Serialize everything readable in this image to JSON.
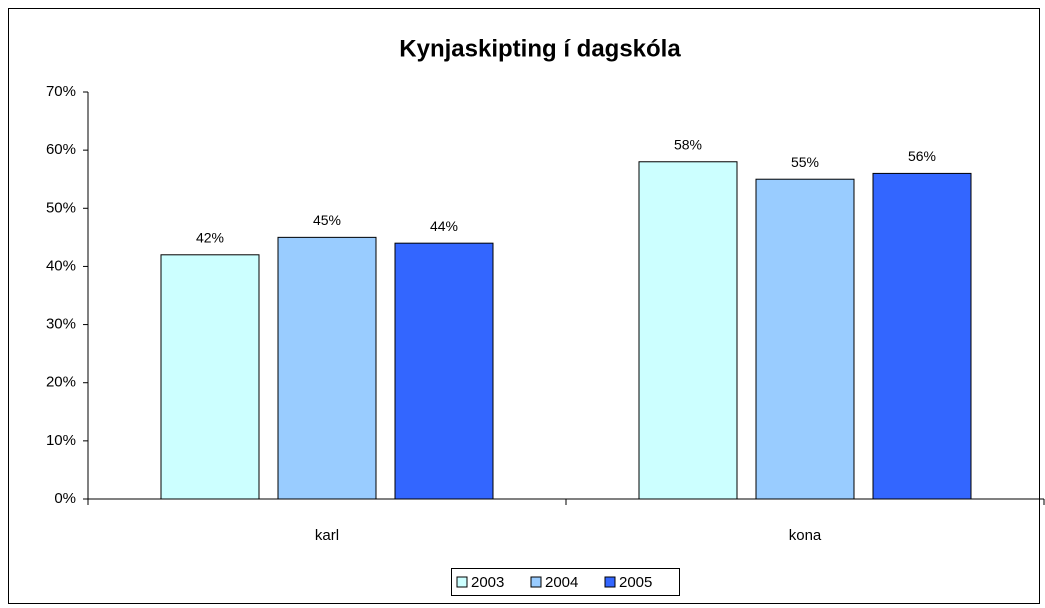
{
  "chart_data": {
    "type": "bar",
    "title": "Kynjaskipting í dagskóla",
    "categories": [
      "karl",
      "kona"
    ],
    "series": [
      {
        "name": "2003",
        "color": "#ccffff",
        "values": [
          42,
          58
        ],
        "value_labels": [
          "42%",
          "58%"
        ]
      },
      {
        "name": "2004",
        "color": "#99ccff",
        "values": [
          45,
          55
        ],
        "value_labels": [
          "45%",
          "55%"
        ]
      },
      {
        "name": "2005",
        "color": "#3366ff",
        "values": [
          44,
          56
        ],
        "value_labels": [
          "44%",
          "56%"
        ]
      }
    ],
    "ylim": [
      0,
      70
    ],
    "yticks": [
      {
        "value": 0,
        "label": "0%"
      },
      {
        "value": 10,
        "label": "10%"
      },
      {
        "value": 20,
        "label": "20%"
      },
      {
        "value": 30,
        "label": "30%"
      },
      {
        "value": 40,
        "label": "40%"
      },
      {
        "value": 50,
        "label": "50%"
      },
      {
        "value": 60,
        "label": "60%"
      },
      {
        "value": 70,
        "label": "70%"
      }
    ],
    "legend": "bottom"
  }
}
